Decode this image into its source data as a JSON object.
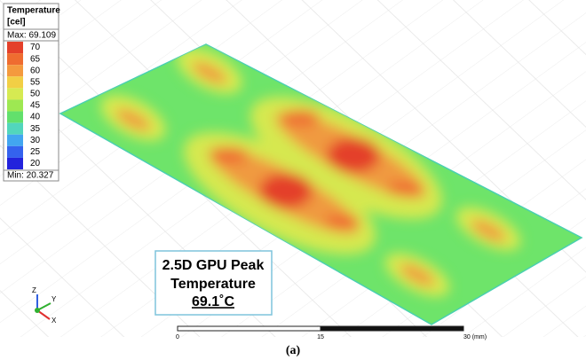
{
  "legend": {
    "title": "Temperature",
    "unit": "[cel]",
    "max": "Max: 69.109",
    "min": "Min: 20.327",
    "levels": [
      {
        "label": "70",
        "color": "#e4402a"
      },
      {
        "label": "65",
        "color": "#ef6c30"
      },
      {
        "label": "60",
        "color": "#f49a3e"
      },
      {
        "label": "55",
        "color": "#f2cf45"
      },
      {
        "label": "50",
        "color": "#d6ea52"
      },
      {
        "label": "45",
        "color": "#9ee852"
      },
      {
        "label": "40",
        "color": "#62e06c"
      },
      {
        "label": "35",
        "color": "#52d6bc"
      },
      {
        "label": "30",
        "color": "#42a6f0"
      },
      {
        "label": "25",
        "color": "#3462ee"
      },
      {
        "label": "20",
        "color": "#2222dc"
      }
    ]
  },
  "annotation": {
    "lines": [
      "2.5D GPU Peak",
      "Temperature",
      "69.1˚C"
    ]
  },
  "scale_bar": {
    "labels": [
      "0",
      "15",
      "30 (mm)"
    ]
  },
  "axis_triad": {
    "labels": [
      "Z",
      "Y",
      "X"
    ]
  },
  "caption": "(a)"
}
